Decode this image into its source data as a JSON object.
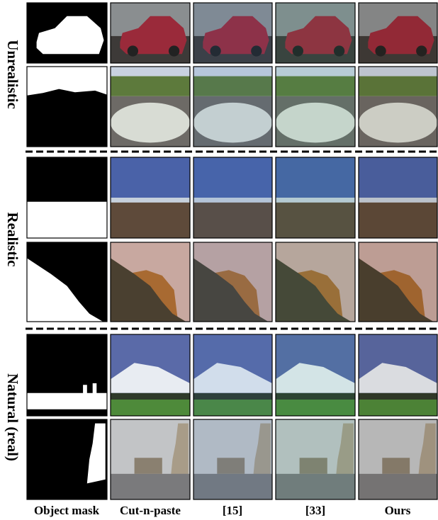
{
  "row_labels": [
    "Unrealistic",
    "Realistic",
    "Natural (real)"
  ],
  "column_labels": [
    "Object mask",
    "Cut-n-paste",
    "[15]",
    "[33]",
    "Ours"
  ]
}
